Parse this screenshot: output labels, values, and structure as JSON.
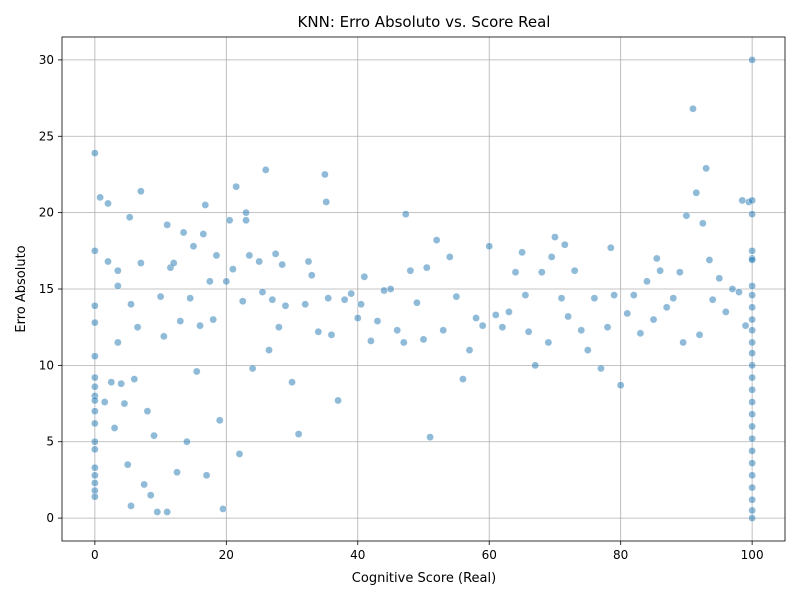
{
  "chart_data": {
    "type": "scatter",
    "title": "KNN: Erro Absoluto vs. Score Real",
    "xlabel": "Cognitive Score (Real)",
    "ylabel": "Erro Absoluto",
    "xlim": [
      -5,
      105
    ],
    "ylim": [
      -1.5,
      31.5
    ],
    "xticks": [
      0,
      20,
      40,
      60,
      80,
      100
    ],
    "yticks": [
      0,
      5,
      10,
      15,
      20,
      25,
      30
    ],
    "grid": true,
    "point_color": "#1f77b4",
    "point_edge_color": "#ffffff",
    "point_alpha": 0.5,
    "series": [
      {
        "points": [
          [
            0,
            23.9
          ],
          [
            0,
            17.5
          ],
          [
            0,
            13.9
          ],
          [
            0,
            12.8
          ],
          [
            0,
            10.6
          ],
          [
            0,
            9.2
          ],
          [
            0,
            8.6
          ],
          [
            0,
            8.0
          ],
          [
            0,
            7.7
          ],
          [
            0,
            7.0
          ],
          [
            0,
            6.2
          ],
          [
            0,
            5.0
          ],
          [
            0,
            4.5
          ],
          [
            0,
            3.3
          ],
          [
            0,
            2.8
          ],
          [
            0,
            2.3
          ],
          [
            0,
            1.8
          ],
          [
            0,
            1.4
          ],
          [
            0.8,
            21.0
          ],
          [
            1.5,
            7.6
          ],
          [
            2,
            20.6
          ],
          [
            2,
            16.8
          ],
          [
            2.5,
            8.9
          ],
          [
            3,
            5.9
          ],
          [
            3.5,
            16.2
          ],
          [
            3.5,
            15.2
          ],
          [
            3.5,
            11.5
          ],
          [
            4,
            8.8
          ],
          [
            4.5,
            7.5
          ],
          [
            5,
            3.5
          ],
          [
            5.3,
            19.7
          ],
          [
            5.5,
            14.0
          ],
          [
            5.5,
            0.8
          ],
          [
            6,
            9.1
          ],
          [
            6.5,
            12.5
          ],
          [
            7,
            21.4
          ],
          [
            7,
            16.7
          ],
          [
            7.5,
            2.2
          ],
          [
            8,
            7.0
          ],
          [
            8.5,
            1.5
          ],
          [
            9,
            5.4
          ],
          [
            9.5,
            0.4
          ],
          [
            10,
            14.5
          ],
          [
            10.5,
            11.9
          ],
          [
            11,
            19.2
          ],
          [
            11,
            0.4
          ],
          [
            11.5,
            16.4
          ],
          [
            12,
            16.7
          ],
          [
            12.5,
            3.0
          ],
          [
            13,
            12.9
          ],
          [
            13.5,
            18.7
          ],
          [
            14,
            5.0
          ],
          [
            14.5,
            14.4
          ],
          [
            15,
            17.8
          ],
          [
            15.5,
            9.6
          ],
          [
            16,
            12.6
          ],
          [
            16.5,
            18.6
          ],
          [
            16.8,
            20.5
          ],
          [
            17,
            2.8
          ],
          [
            17.5,
            15.5
          ],
          [
            18,
            13.0
          ],
          [
            18.5,
            17.2
          ],
          [
            19,
            6.4
          ],
          [
            19.5,
            0.6
          ],
          [
            20,
            15.5
          ],
          [
            20.5,
            19.5
          ],
          [
            21,
            16.3
          ],
          [
            21.5,
            21.7
          ],
          [
            22,
            4.2
          ],
          [
            22.5,
            14.2
          ],
          [
            23,
            20.0
          ],
          [
            23,
            19.5
          ],
          [
            23.5,
            17.2
          ],
          [
            24,
            9.8
          ],
          [
            25,
            16.8
          ],
          [
            25.5,
            14.8
          ],
          [
            26,
            22.8
          ],
          [
            26.5,
            11.0
          ],
          [
            27,
            14.3
          ],
          [
            27.5,
            17.3
          ],
          [
            28,
            12.5
          ],
          [
            28.5,
            16.6
          ],
          [
            29,
            13.9
          ],
          [
            30,
            8.9
          ],
          [
            31,
            5.5
          ],
          [
            32,
            14.0
          ],
          [
            32.5,
            16.8
          ],
          [
            33,
            15.9
          ],
          [
            34,
            12.2
          ],
          [
            35,
            22.5
          ],
          [
            35.2,
            20.7
          ],
          [
            35.5,
            14.4
          ],
          [
            36,
            12.0
          ],
          [
            37,
            7.7
          ],
          [
            38,
            14.3
          ],
          [
            39,
            14.7
          ],
          [
            40,
            13.1
          ],
          [
            40.5,
            14.0
          ],
          [
            41,
            15.8
          ],
          [
            42,
            11.6
          ],
          [
            43,
            12.9
          ],
          [
            44,
            14.9
          ],
          [
            45,
            15.0
          ],
          [
            46,
            12.3
          ],
          [
            47,
            11.5
          ],
          [
            47.3,
            19.9
          ],
          [
            48,
            16.2
          ],
          [
            49,
            14.1
          ],
          [
            50,
            11.7
          ],
          [
            50.5,
            16.4
          ],
          [
            51,
            5.3
          ],
          [
            52,
            18.2
          ],
          [
            53,
            12.3
          ],
          [
            54,
            17.1
          ],
          [
            55,
            14.5
          ],
          [
            56,
            9.1
          ],
          [
            57,
            11.0
          ],
          [
            58,
            13.1
          ],
          [
            59,
            12.6
          ],
          [
            60,
            17.8
          ],
          [
            61,
            13.3
          ],
          [
            62,
            12.5
          ],
          [
            63,
            13.5
          ],
          [
            64,
            16.1
          ],
          [
            65,
            17.4
          ],
          [
            65.5,
            14.6
          ],
          [
            66,
            12.2
          ],
          [
            67,
            10.0
          ],
          [
            68,
            16.1
          ],
          [
            69,
            11.5
          ],
          [
            69.5,
            17.1
          ],
          [
            70,
            18.4
          ],
          [
            71,
            14.4
          ],
          [
            71.5,
            17.9
          ],
          [
            72,
            13.2
          ],
          [
            73,
            16.2
          ],
          [
            74,
            12.3
          ],
          [
            75,
            11.0
          ],
          [
            76,
            14.4
          ],
          [
            77,
            9.8
          ],
          [
            78,
            12.5
          ],
          [
            78.5,
            17.7
          ],
          [
            79,
            14.6
          ],
          [
            80,
            8.7
          ],
          [
            81,
            13.4
          ],
          [
            82,
            14.6
          ],
          [
            83,
            12.1
          ],
          [
            84,
            15.5
          ],
          [
            85,
            13.0
          ],
          [
            85.5,
            17.0
          ],
          [
            86,
            16.2
          ],
          [
            87,
            13.8
          ],
          [
            88,
            14.4
          ],
          [
            89,
            16.1
          ],
          [
            89.5,
            11.5
          ],
          [
            90,
            19.8
          ],
          [
            91,
            26.8
          ],
          [
            91.5,
            21.3
          ],
          [
            92,
            12.0
          ],
          [
            92.5,
            19.3
          ],
          [
            93,
            22.9
          ],
          [
            93.5,
            16.9
          ],
          [
            94,
            14.3
          ],
          [
            95,
            15.7
          ],
          [
            96,
            13.5
          ],
          [
            97,
            15.0
          ],
          [
            98,
            14.8
          ],
          [
            98.5,
            20.8
          ],
          [
            99,
            12.6
          ],
          [
            99.5,
            20.7
          ],
          [
            100,
            30.0
          ],
          [
            100,
            20.8
          ],
          [
            100,
            19.9
          ],
          [
            100,
            17.5
          ],
          [
            100,
            17.0
          ],
          [
            100,
            16.9
          ],
          [
            100,
            15.2
          ],
          [
            100,
            14.6
          ],
          [
            100,
            13.8
          ],
          [
            100,
            13.0
          ],
          [
            100,
            12.3
          ],
          [
            100,
            11.5
          ],
          [
            100,
            10.8
          ],
          [
            100,
            10.0
          ],
          [
            100,
            9.2
          ],
          [
            100,
            8.4
          ],
          [
            100,
            7.6
          ],
          [
            100,
            6.8
          ],
          [
            100,
            6.0
          ],
          [
            100,
            5.2
          ],
          [
            100,
            4.4
          ],
          [
            100,
            3.6
          ],
          [
            100,
            2.8
          ],
          [
            100,
            2.0
          ],
          [
            100,
            1.2
          ],
          [
            100,
            0.5
          ],
          [
            100,
            0.0
          ]
        ]
      }
    ]
  }
}
